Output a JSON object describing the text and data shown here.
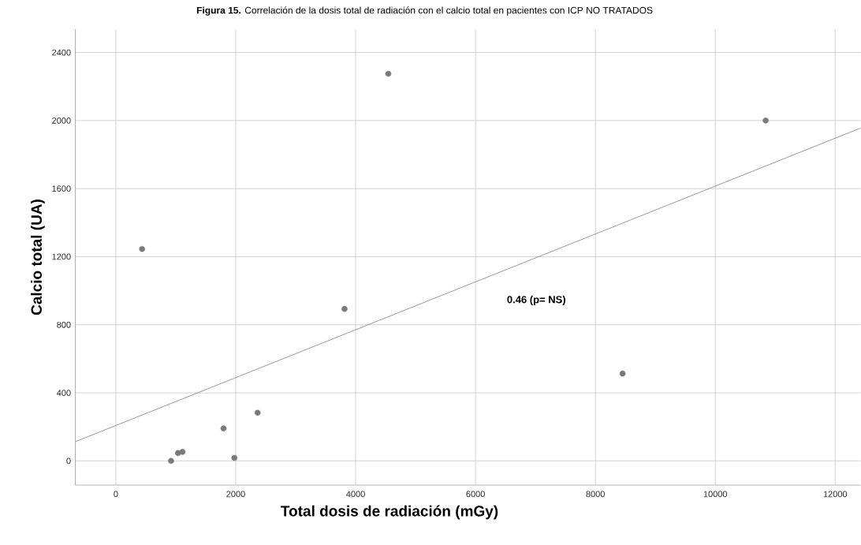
{
  "chart_data": {
    "type": "scatter",
    "title": "**Figura 15.** Correlación de la dosis total de radiación con el calcio total en pacientes con ICP NO TRATADOS",
    "xlabel": "Total dosis de radiación (mGy)",
    "ylabel": "Calcio total  (UA)",
    "series": [
      {
        "color": "#7a7a7a",
        "marker": "circle",
        "x": [
          438,
          921,
          1037,
          1112,
          1797,
          1978,
          2365,
          3815,
          4545,
          8453,
          10840
        ],
        "values": [
          1245,
          0,
          46,
          53,
          191,
          18,
          283,
          893,
          2275,
          513,
          2000
        ]
      },
      {
        "type": "line",
        "color": "#8c8c8c",
        "x": [
          -675,
          12425
        ],
        "values": [
          113,
          1956
        ]
      }
    ],
    "annotations": [
      "0.46 (p= NS)"
    ],
    "xlim": [
      -675,
      12425
    ],
    "ylim": [
      -142,
      2537
    ],
    "xticks": [
      0,
      2000,
      4000,
      6000,
      8000,
      10000,
      12000
    ],
    "yticks": [
      0,
      400,
      800,
      1200,
      1600,
      2000,
      2400
    ],
    "grid": true
  }
}
